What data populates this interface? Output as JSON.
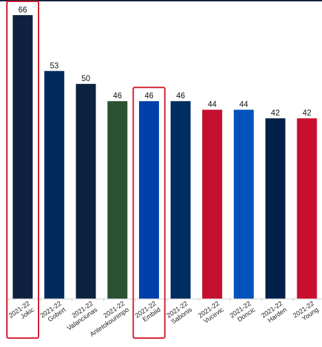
{
  "chart_data": {
    "type": "bar",
    "title": "",
    "xlabel": "",
    "ylabel": "",
    "ylim": [
      0,
      66
    ],
    "grid": false,
    "legend": "none",
    "categories": [
      {
        "season": "2021-22",
        "player": "Jokic"
      },
      {
        "season": "2021-22",
        "player": "Gobert"
      },
      {
        "season": "2021-22",
        "player": "Valanciunas"
      },
      {
        "season": "2021-22",
        "player": "Antetokounmpo"
      },
      {
        "season": "2021-22",
        "player": "Embiid"
      },
      {
        "season": "2021-22",
        "player": "Sabonis"
      },
      {
        "season": "2021-22",
        "player": "Vucevic"
      },
      {
        "season": "2021-22",
        "player": "Doncic"
      },
      {
        "season": "2021-22",
        "player": "Harden"
      },
      {
        "season": "2021-22",
        "player": "Young"
      }
    ],
    "values": [
      66,
      53,
      50,
      46,
      46,
      46,
      44,
      44,
      42,
      42
    ],
    "value_labels": [
      "66",
      "53",
      "50",
      "46",
      "46",
      "46",
      "44",
      "44",
      "42",
      "42"
    ],
    "colors": [
      "#0e2240",
      "#002b5c",
      "#0c2340",
      "#2c5234",
      "#0040aa",
      "#002d62",
      "#c4102e",
      "#0053bc",
      "#002147",
      "#c8102e"
    ],
    "highlighted": [
      "Jokic",
      "Embiid"
    ],
    "highlight_color": "#d11a2a"
  }
}
